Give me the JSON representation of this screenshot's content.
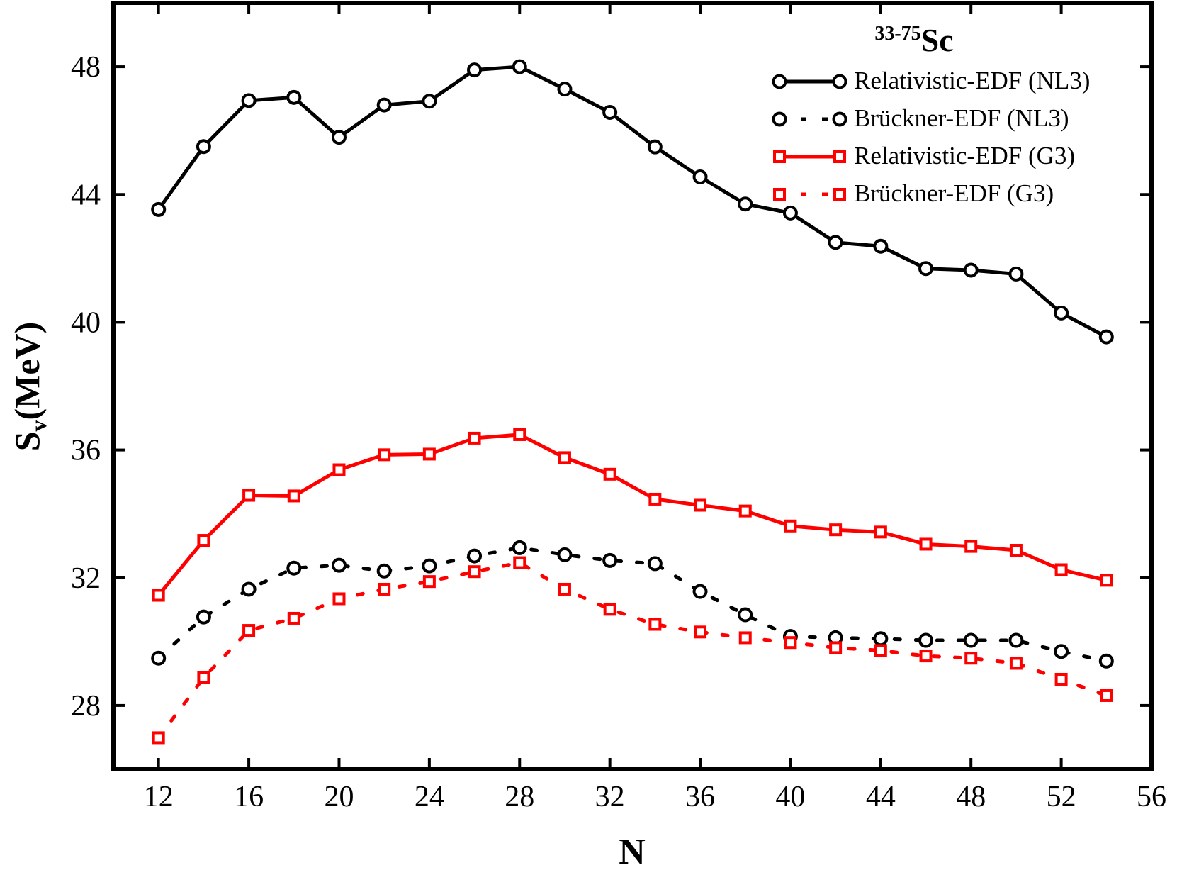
{
  "chart_data": {
    "type": "line",
    "annotation": {
      "superscript": "33-75",
      "text": "Sc"
    },
    "xlabel": "N",
    "ylabel": {
      "main": "S",
      "sub": "v",
      "rest": "(MeV)"
    },
    "x": [
      12,
      14,
      16,
      18,
      20,
      22,
      24,
      26,
      28,
      30,
      32,
      34,
      36,
      38,
      40,
      42,
      44,
      46,
      48,
      50,
      52,
      54
    ],
    "xlim": [
      10,
      56
    ],
    "xticks": [
      12,
      16,
      20,
      24,
      28,
      32,
      36,
      40,
      44,
      48,
      52,
      56
    ],
    "ylim": [
      26,
      50
    ],
    "yticks": [
      28,
      32,
      36,
      40,
      44,
      48
    ],
    "legend": "upper right",
    "series": [
      {
        "name": "Relativistic-EDF (NL3)",
        "color": "#000000",
        "marker": "circle",
        "linestyle": "solid",
        "values": [
          43.53,
          45.5,
          46.94,
          47.04,
          45.79,
          46.8,
          46.92,
          47.9,
          48.0,
          47.3,
          46.57,
          45.49,
          44.55,
          43.7,
          43.42,
          42.5,
          42.38,
          41.68,
          41.63,
          41.51,
          40.29,
          39.54
        ]
      },
      {
        "name": "Brückner-EDF (NL3)",
        "color": "#000000",
        "marker": "circle",
        "linestyle": "dashed",
        "values": [
          29.48,
          30.77,
          31.64,
          32.3,
          32.39,
          32.21,
          32.37,
          32.68,
          32.94,
          32.72,
          32.54,
          32.44,
          31.57,
          30.84,
          30.16,
          30.12,
          30.09,
          30.04,
          30.04,
          30.04,
          29.69,
          29.39
        ]
      },
      {
        "name": "Relativistic-EDF (G3)",
        "color": "#ff0000",
        "marker": "square",
        "linestyle": "solid",
        "values": [
          31.45,
          33.17,
          34.58,
          34.56,
          35.38,
          35.85,
          35.87,
          36.37,
          36.48,
          35.76,
          35.24,
          34.46,
          34.27,
          34.09,
          33.62,
          33.5,
          33.43,
          33.05,
          32.98,
          32.86,
          32.25,
          31.92
        ]
      },
      {
        "name": "Brückner-EDF (G3)",
        "color": "#ff0000",
        "marker": "square",
        "linestyle": "dashed",
        "values": [
          26.99,
          28.87,
          30.35,
          30.73,
          31.34,
          31.64,
          31.88,
          32.19,
          32.47,
          31.64,
          31.01,
          30.54,
          30.3,
          30.12,
          29.97,
          29.81,
          29.72,
          29.55,
          29.48,
          29.32,
          28.82,
          28.31
        ]
      }
    ]
  }
}
